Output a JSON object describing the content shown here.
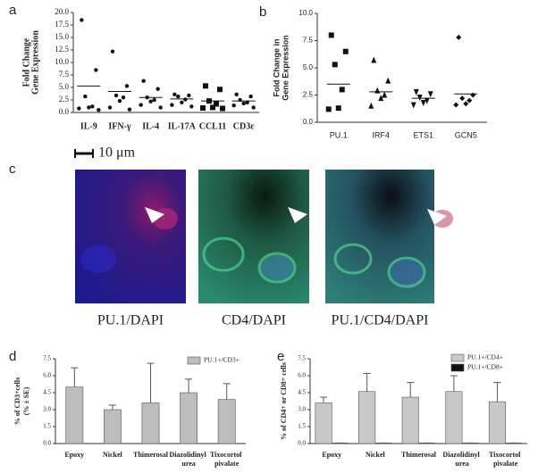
{
  "panels": [
    "a",
    "b",
    "c",
    "d",
    "e"
  ],
  "micrographs": {
    "scale_bar": "10 μm",
    "captions": [
      "PU.1/DAPI",
      "CD4/DAPI",
      "PU.1/CD4/DAPI"
    ]
  },
  "chart_data": [
    {
      "type": "strip",
      "ylabel": [
        "Fold Change",
        "Gene Expression"
      ],
      "categories": [
        "IL-9",
        "IFN-γ",
        "IL-4",
        "IL-17A",
        "CCL11",
        "CD3ε"
      ],
      "values": [
        [
          18.5,
          8.5,
          3.2,
          1.2,
          1.0,
          0.8,
          0.5
        ],
        [
          12.2,
          5.3,
          3.4,
          3.0,
          2.3,
          1.0,
          0.6
        ],
        [
          6.3,
          4.7,
          3.0,
          2.5,
          2.2,
          1.5,
          1.0
        ],
        [
          3.6,
          3.4,
          3.2,
          2.6,
          2.0,
          1.5,
          1.2
        ],
        [
          5.3,
          4.6,
          2.3,
          1.7,
          1.0,
          0.9,
          0.8
        ],
        [
          3.6,
          3.2,
          2.5,
          2.0,
          1.8,
          1.4,
          1.0
        ]
      ],
      "means": [
        5.3,
        4.2,
        3.0,
        2.7,
        2.3,
        2.3
      ],
      "markers": [
        "circle",
        "circle",
        "circle",
        "circle",
        "square",
        "circle"
      ],
      "color": "#111111",
      "ylim": [
        0,
        20
      ],
      "yticks": [
        {
          "value": 0,
          "label": "0.0"
        },
        {
          "value": 2.5,
          "label": "2.5"
        },
        {
          "value": 5,
          "label": "5.0"
        },
        {
          "value": 7.5,
          "label": "7.5"
        },
        {
          "value": 10,
          "label": "10.0"
        },
        {
          "value": 12.5,
          "label": "12.5"
        },
        {
          "value": 15,
          "label": "15.0"
        },
        {
          "value": 17.5,
          "label": "17.5"
        },
        {
          "value": 20,
          "label": "20.0"
        }
      ]
    },
    {
      "type": "strip",
      "ylabel": [
        "Fold Change in",
        "Gene Expression"
      ],
      "categories": [
        "PU.1",
        "IRF4",
        "ETS1",
        "GCN5"
      ],
      "values": [
        [
          8.0,
          6.5,
          5.3,
          3.0,
          1.3,
          1.2
        ],
        [
          5.7,
          3.8,
          2.9,
          2.5,
          2.2,
          1.5
        ],
        [
          2.8,
          2.6,
          2.3,
          2.0,
          1.8,
          1.6
        ],
        [
          7.8,
          2.5,
          2.2,
          2.0,
          1.7,
          1.6
        ]
      ],
      "means": [
        3.5,
        2.8,
        2.2,
        2.6
      ],
      "markers": [
        "square",
        "triangle",
        "triangle-down",
        "diamond"
      ],
      "color": "#111111",
      "ylim": [
        0,
        10
      ],
      "yticks": [
        {
          "value": 0,
          "label": "0.0"
        },
        {
          "value": 2.5,
          "label": "2.5"
        },
        {
          "value": 5,
          "label": "5.0"
        },
        {
          "value": 7.5,
          "label": "7.5"
        },
        {
          "value": 10,
          "label": "10.0"
        }
      ]
    },
    {
      "type": "bar",
      "ylabel": [
        "% of CD3+cells",
        "(% ± SE)"
      ],
      "categories": [
        "Epoxy",
        "Nickel",
        "Thimerosal",
        "Diazolidinyl urea",
        "Tixocortol pivalate"
      ],
      "series": [
        {
          "name": "PU.1+/CD3+",
          "color": "#bdbdbd",
          "values": [
            5.0,
            3.0,
            3.6,
            4.5,
            3.9
          ],
          "errors": [
            1.7,
            0.4,
            3.5,
            1.2,
            1.4
          ]
        }
      ],
      "ylim": [
        0,
        7.5
      ],
      "yticks": [
        {
          "value": 0,
          "label": "0.0"
        },
        {
          "value": 1.5,
          "label": "1.5"
        },
        {
          "value": 3,
          "label": "3.0"
        },
        {
          "value": 4.5,
          "label": "4.5"
        },
        {
          "value": 6,
          "label": "6.0"
        },
        {
          "value": 7.5,
          "label": "7.5"
        }
      ]
    },
    {
      "type": "bar",
      "ylabel": [
        "% of CD4+ or CD8+ cells"
      ],
      "categories": [
        "Epoxy",
        "Nickel",
        "Thimerosal",
        "Diazolidinyl urea",
        "Tixocortol pivalate"
      ],
      "series": [
        {
          "name": "PU.1+/CD4+",
          "color": "#c8c8c8",
          "values": [
            3.6,
            4.6,
            4.1,
            4.6,
            3.7
          ],
          "errors": [
            0.5,
            1.6,
            1.3,
            1.4,
            1.7
          ]
        },
        {
          "name": "PU.1+/CD8+",
          "color": "#111111",
          "values": [
            0.05,
            0.05,
            0.05,
            0.05,
            0.05
          ],
          "errors": [
            0,
            0,
            0,
            0,
            0
          ]
        }
      ],
      "ylim": [
        0,
        7.5
      ],
      "yticks": [
        {
          "value": 0,
          "label": "0.0"
        },
        {
          "value": 1.5,
          "label": "1.5"
        },
        {
          "value": 3,
          "label": "3.0"
        },
        {
          "value": 4.5,
          "label": "4.5"
        },
        {
          "value": 6,
          "label": "6.0"
        },
        {
          "value": 7.5,
          "label": "7.5"
        }
      ]
    }
  ]
}
